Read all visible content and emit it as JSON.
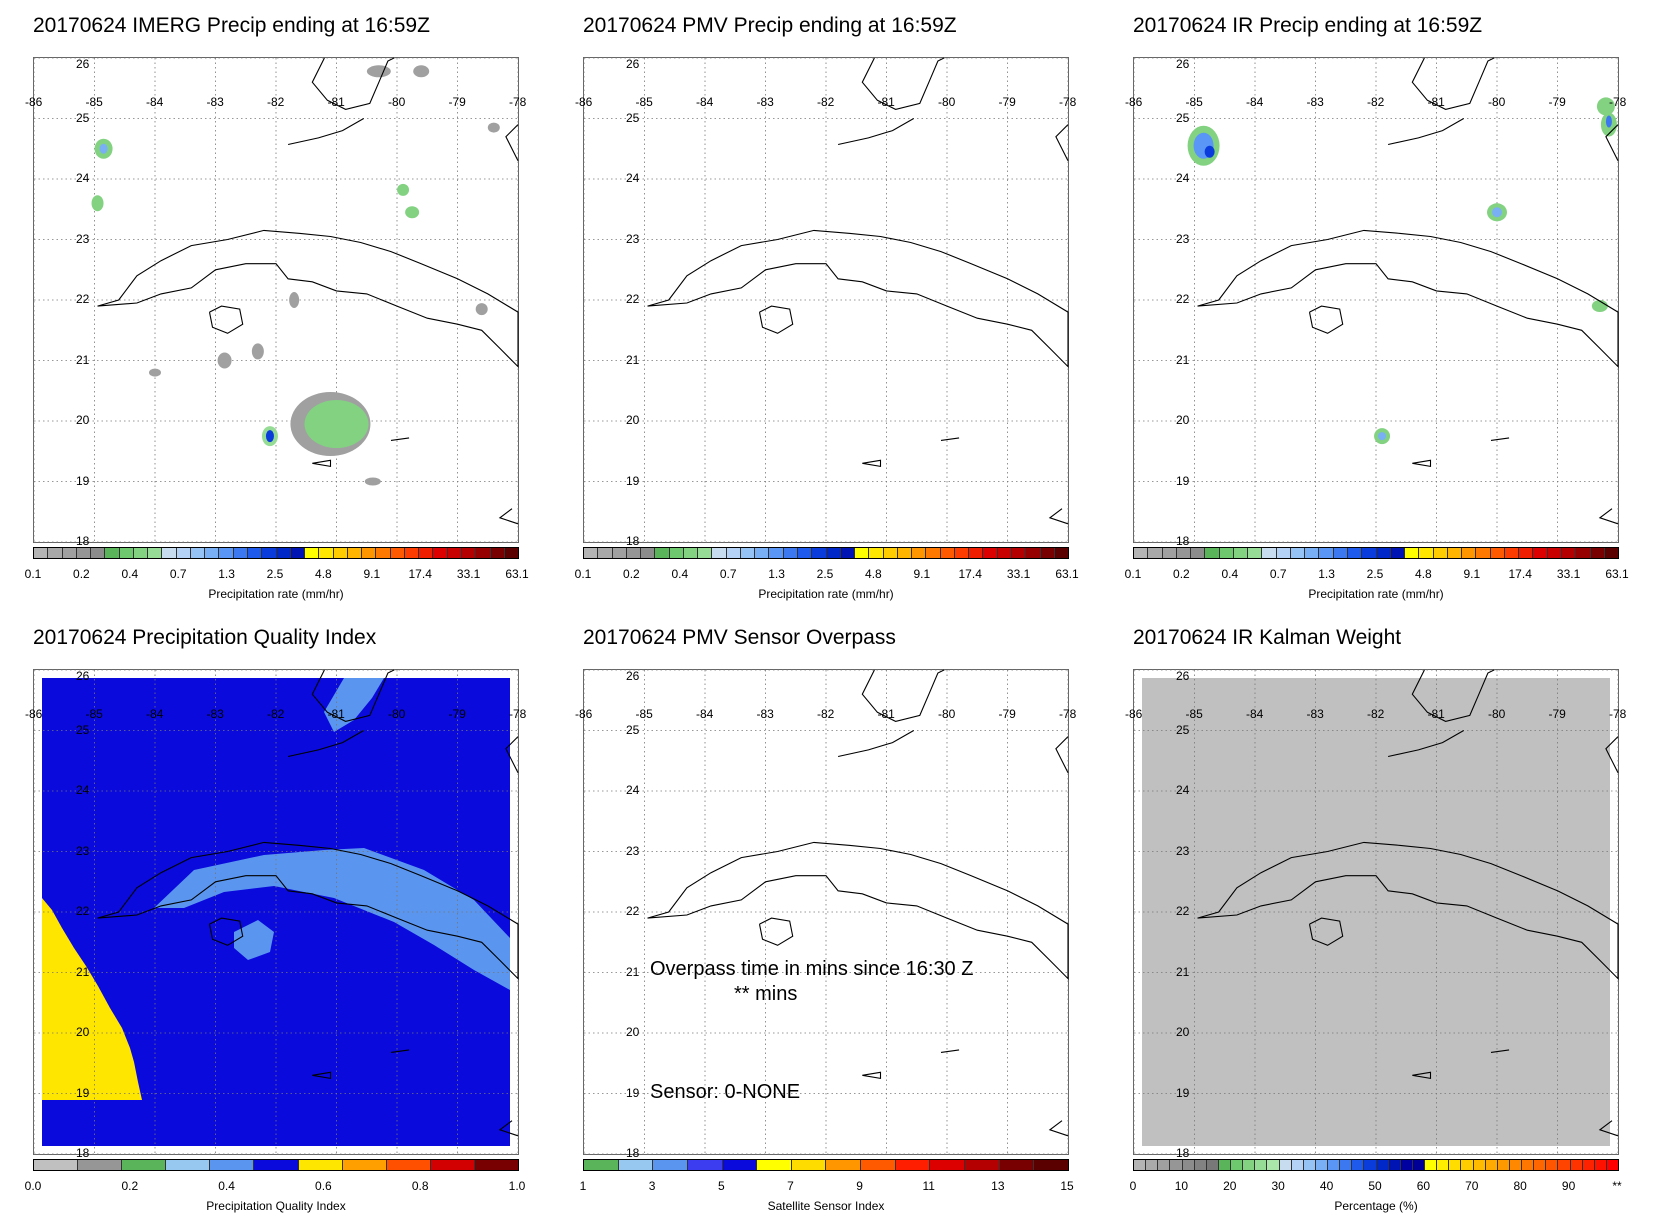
{
  "panels": [
    {
      "id": "p1",
      "title": "20170624 IMERG Precip ending at 16:59Z",
      "colorbar": "precip",
      "cbar_title": "Precipitation rate (mm/hr)",
      "bg": "none",
      "overlay": "imerg"
    },
    {
      "id": "p2",
      "title": "20170624 PMV Precip ending at 16:59Z",
      "colorbar": "precip",
      "cbar_title": "Precipitation rate (mm/hr)",
      "bg": "none",
      "overlay": "none"
    },
    {
      "id": "p3",
      "title": "20170624 IR Precip ending at 16:59Z",
      "colorbar": "precip",
      "cbar_title": "Precipitation rate (mm/hr)",
      "bg": "none",
      "overlay": "ir"
    },
    {
      "id": "p4",
      "title": "20170624 Precipitation Quality Index",
      "colorbar": "quality",
      "cbar_title": "Precipitation Quality Index",
      "bg": "quality",
      "overlay": "none"
    },
    {
      "id": "p5",
      "title": "20170624 PMV Sensor Overpass",
      "colorbar": "sensor",
      "cbar_title": "Satellite Sensor Index",
      "bg": "none",
      "overlay": "none",
      "text": {
        "line1": "Overpass time in mins since 16:30 Z",
        "line2": "** mins",
        "line3": "Sensor:   0-NONE"
      }
    },
    {
      "id": "p6",
      "title": "20170624 IR Kalman Weight",
      "colorbar": "percent",
      "cbar_title": "Percentage (%)",
      "bg": "gray",
      "overlay": "none"
    }
  ],
  "map": {
    "lon_labels": [
      "-86",
      "-85",
      "-84",
      "-83",
      "-82",
      "-81",
      "-80",
      "-79",
      "-78"
    ],
    "lat_labels": [
      "26",
      "25",
      "24",
      "23",
      "22",
      "21",
      "20",
      "19",
      "18"
    ],
    "lon_range": [
      -86,
      -78
    ],
    "lat_range": [
      18,
      26
    ]
  },
  "colorbars": {
    "precip": {
      "colors": [
        "#b4b4b4",
        "#a8a8a8",
        "#a0a0a0",
        "#969696",
        "#8c8c8c",
        "#5ab45a",
        "#6ec86e",
        "#82d282",
        "#96dc96",
        "#c8dcf0",
        "#b4d2f5",
        "#96c3f5",
        "#78aff5",
        "#5a96f5",
        "#3c78f0",
        "#1e5aeb",
        "#0a3cdc",
        "#0028c8",
        "#0014b4",
        "#ffff00",
        "#ffe600",
        "#ffcc00",
        "#ffb400",
        "#ff9600",
        "#ff7800",
        "#ff5a00",
        "#ff3c00",
        "#f01e00",
        "#dc0000",
        "#c80000",
        "#b40000",
        "#960000",
        "#780000",
        "#5a0000"
      ],
      "ticks": [
        "0.1",
        "0.2",
        "0.4",
        "0.7",
        "1.3",
        "2.5",
        "4.8",
        "9.1",
        "17.4",
        "33.1",
        "63.1"
      ]
    },
    "quality": {
      "colors": [
        "#c0c0c0",
        "#969696",
        "#5ab45a",
        "#96c8f0",
        "#5a96f0",
        "#0a0adc",
        "#ffe600",
        "#ffa000",
        "#ff5000",
        "#d20000",
        "#780000"
      ],
      "ticks": [
        "0.0",
        "0.2",
        "0.4",
        "0.6",
        "0.8",
        "1.0"
      ]
    },
    "sensor": {
      "colors": [
        "#5ab45a",
        "#96c8f0",
        "#5a96f0",
        "#3c3cf0",
        "#0a0adc",
        "#ffff00",
        "#ffdc00",
        "#ff9600",
        "#ff5a00",
        "#ff1e00",
        "#dc0000",
        "#b40000",
        "#780000",
        "#5a0000"
      ],
      "ticks": [
        "1",
        "3",
        "5",
        "7",
        "9",
        "11",
        "13",
        "15"
      ]
    },
    "percent": {
      "colors": [
        "#b4b4b4",
        "#aaaaaa",
        "#a0a0a0",
        "#969696",
        "#8c8c8c",
        "#828282",
        "#787878",
        "#5ab45a",
        "#6ec86e",
        "#82d282",
        "#96dc96",
        "#aae6aa",
        "#c8dcf0",
        "#b4d2f5",
        "#96c3f5",
        "#78aff5",
        "#5a96f5",
        "#3c78f0",
        "#1e5aeb",
        "#0a3cdc",
        "#0028c8",
        "#0014b4",
        "#0000a0",
        "#000096",
        "#ffff00",
        "#ffee00",
        "#ffdd00",
        "#ffcc00",
        "#ffbb00",
        "#ffaa00",
        "#ff9900",
        "#ff8800",
        "#ff7700",
        "#ff6600",
        "#ff5500",
        "#ff4400",
        "#ff3300",
        "#ff2200",
        "#ff1100",
        "#ff0000"
      ],
      "ticks": [
        "0",
        "10",
        "20",
        "30",
        "40",
        "50",
        "60",
        "70",
        "80",
        "90",
        "**"
      ]
    }
  }
}
